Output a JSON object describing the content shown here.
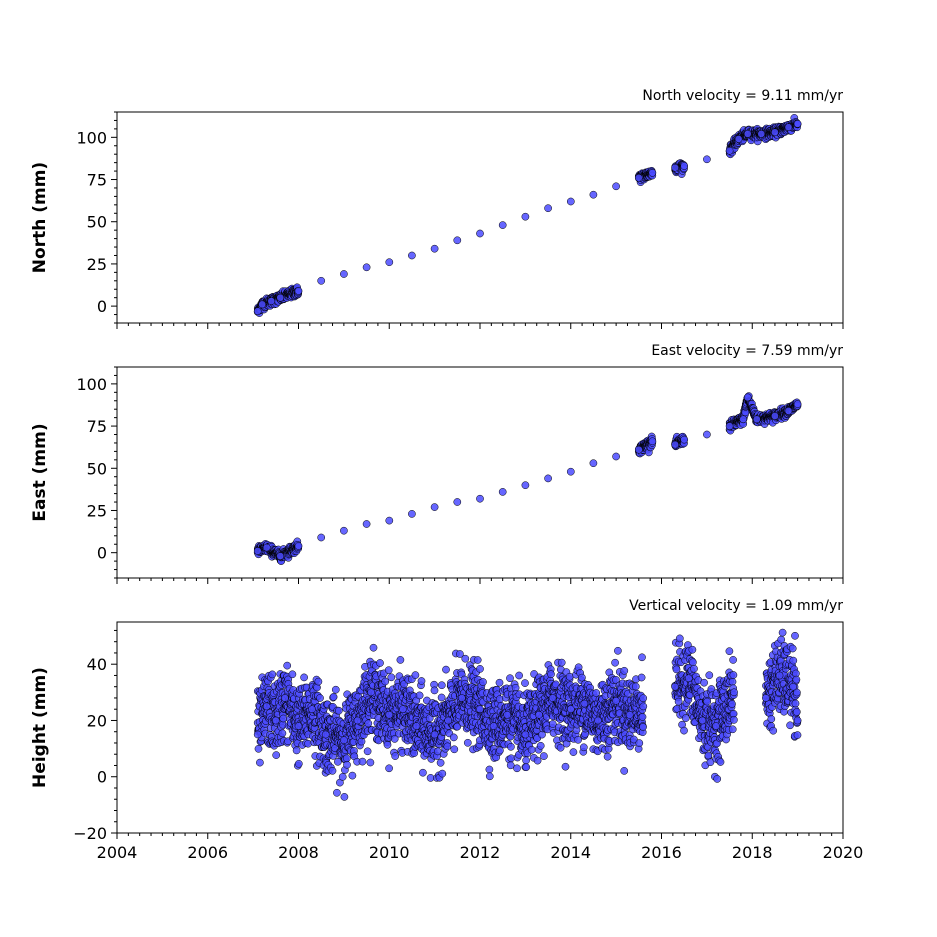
{
  "chart_data": [
    {
      "type": "scatter",
      "title": "North velocity = 9.11 mm/yr",
      "ylabel": "North (mm)",
      "xlim": [
        2004,
        2020
      ],
      "ylim": [
        -10,
        115
      ],
      "yticks": [
        0,
        25,
        50,
        75,
        100
      ],
      "x_tick_labels_visible": false,
      "marker_color": "#4b4bff",
      "marker_edge": "#000000",
      "series": [
        {
          "x": [
            2007.1,
            2007.2,
            2007.4,
            2007.6,
            2008.0,
            2008.5,
            2009.0,
            2009.5,
            2010.0,
            2010.5,
            2011.0,
            2011.5,
            2012.0,
            2012.5,
            2013.0,
            2013.5,
            2014.0,
            2014.5,
            2015.0,
            2015.5,
            2015.8,
            2016.3,
            2016.5,
            2017.0,
            2017.5,
            2017.7,
            2017.9,
            2018.2,
            2018.5,
            2018.8,
            2019.0
          ],
          "y": [
            -3,
            1,
            3,
            5,
            9,
            15,
            19,
            23,
            26,
            30,
            34,
            39,
            43,
            48,
            53,
            58,
            62,
            66,
            71,
            76,
            79,
            82,
            83,
            87,
            92,
            99,
            102,
            102,
            103,
            106,
            108
          ]
        }
      ]
    },
    {
      "type": "scatter",
      "title": "East velocity = 7.59 mm/yr",
      "ylabel": "East (mm)",
      "xlim": [
        2004,
        2020
      ],
      "ylim": [
        -15,
        110
      ],
      "yticks": [
        0,
        25,
        50,
        75,
        100
      ],
      "x_tick_labels_visible": false,
      "marker_color": "#4b4bff",
      "marker_edge": "#000000",
      "series": [
        {
          "x": [
            2007.1,
            2007.3,
            2007.6,
            2008.0,
            2008.5,
            2009.0,
            2009.5,
            2010.0,
            2010.5,
            2011.0,
            2011.5,
            2012.0,
            2012.5,
            2013.0,
            2013.5,
            2014.0,
            2014.5,
            2015.0,
            2015.5,
            2015.8,
            2016.3,
            2016.5,
            2017.0,
            2017.5,
            2017.8,
            2017.9,
            2018.1,
            2018.5,
            2018.8,
            2019.0
          ],
          "y": [
            1,
            3,
            -2,
            4,
            9,
            13,
            17,
            19,
            23,
            27,
            30,
            32,
            36,
            40,
            44,
            48,
            53,
            57,
            61,
            66,
            64,
            67,
            70,
            75,
            79,
            92,
            79,
            81,
            84,
            88
          ]
        }
      ]
    },
    {
      "type": "scatter",
      "title": "Vertical velocity = 1.09 mm/yr",
      "ylabel": "Height (mm)",
      "xlim": [
        2004,
        2020
      ],
      "ylim": [
        -20,
        55
      ],
      "yticks": [
        -20,
        0,
        20,
        40
      ],
      "xticks": [
        2004,
        2006,
        2008,
        2010,
        2012,
        2014,
        2016,
        2018,
        2020
      ],
      "x_tick_labels_visible": true,
      "marker_color": "#4b4bff",
      "marker_edge": "#000000",
      "series": [
        {
          "x": [
            2007.1,
            2007.3,
            2007.5,
            2007.7,
            2008.0,
            2008.3,
            2008.6,
            2009.0,
            2009.3,
            2009.6,
            2010.0,
            2010.3,
            2010.6,
            2011.0,
            2011.3,
            2011.6,
            2012.0,
            2012.3,
            2012.6,
            2013.0,
            2013.3,
            2013.6,
            2014.0,
            2014.3,
            2014.6,
            2015.0,
            2015.3,
            2015.6,
            2016.3,
            2016.6,
            2016.9,
            2017.2,
            2017.6,
            2018.3,
            2018.6,
            2018.9,
            2019.0
          ],
          "y": [
            15,
            25,
            20,
            28,
            18,
            24,
            15,
            13,
            20,
            30,
            22,
            24,
            18,
            15,
            20,
            28,
            24,
            18,
            22,
            15,
            22,
            28,
            24,
            26,
            20,
            27,
            22,
            25,
            32,
            35,
            20,
            18,
            30,
            28,
            36,
            32,
            20
          ]
        }
      ]
    }
  ]
}
